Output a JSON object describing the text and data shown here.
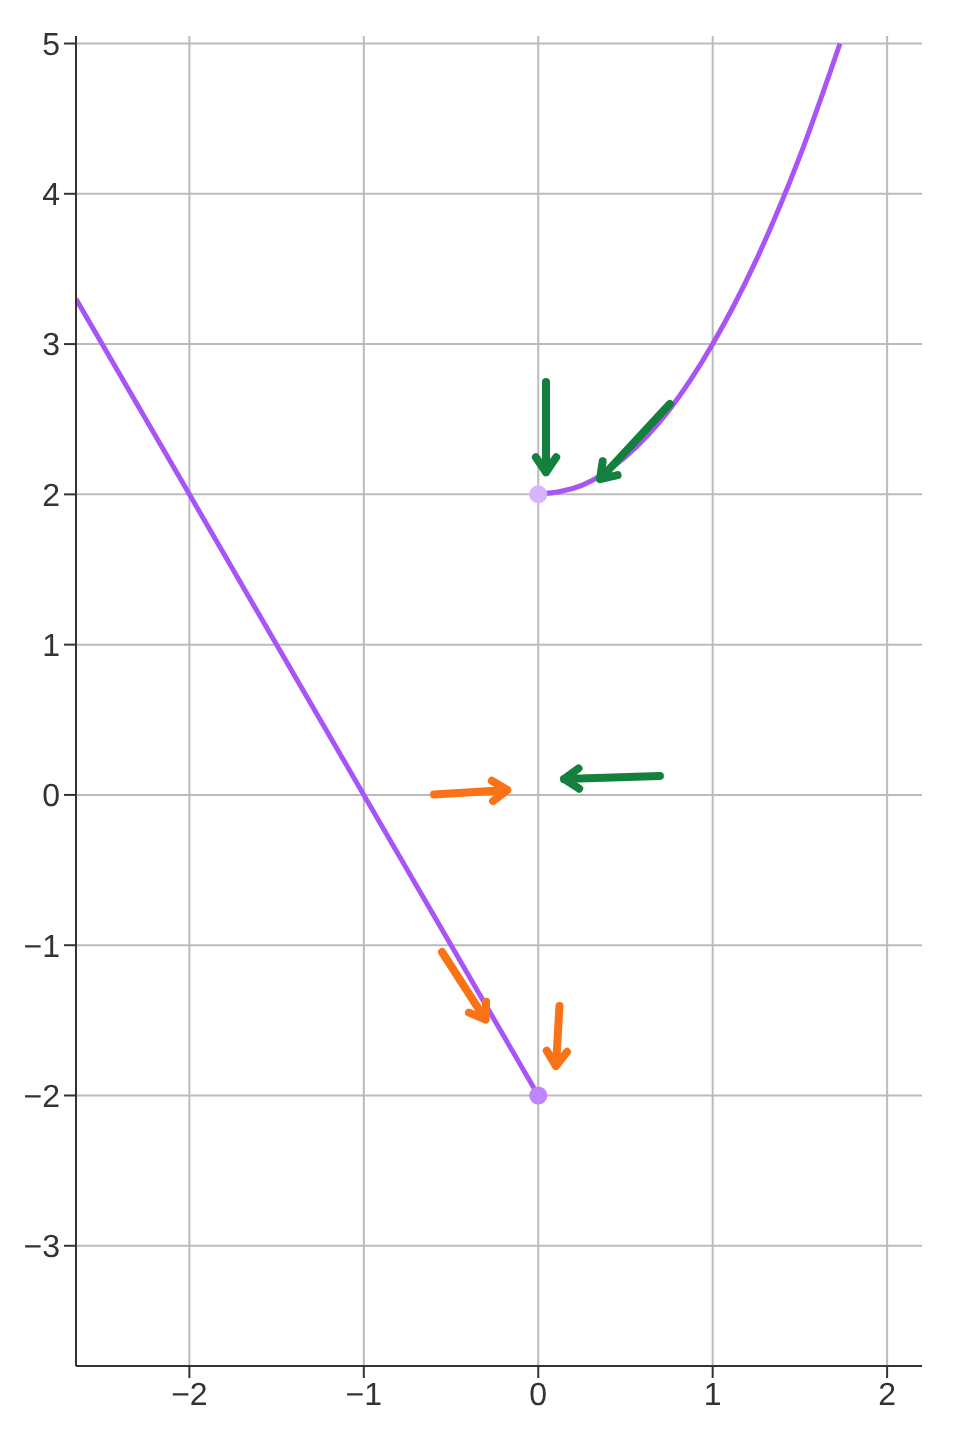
{
  "chart_data": {
    "type": "line",
    "xlim": [
      -2.65,
      2.2
    ],
    "ylim": [
      -3.8,
      5.05
    ],
    "xticks": [
      -2,
      -1,
      0,
      1,
      2
    ],
    "yticks": [
      -3,
      -2,
      -1,
      0,
      1,
      2,
      3,
      4,
      5
    ],
    "grid": true,
    "marker": "none",
    "line_style": "solid",
    "series": [
      {
        "color": "#a855f7",
        "x": [
          -2.65,
          -2,
          -1,
          0
        ],
        "values": [
          3.3,
          2,
          0,
          -2
        ]
      },
      {
        "color": "#a855f7",
        "x": [
          0,
          0.25,
          0.5,
          0.75,
          1,
          1.25,
          1.5,
          1.73
        ],
        "values": [
          2,
          2.06,
          2.25,
          2.56,
          3,
          3.56,
          4.25,
          5
        ]
      },
      {
        "type": "scatter",
        "color": "#d8b4fe",
        "marker": "circle",
        "x": [
          0
        ],
        "values": [
          2
        ]
      },
      {
        "type": "scatter",
        "color": "#c084fc",
        "marker": "circle",
        "x": [
          0
        ],
        "values": [
          -2
        ]
      }
    ]
  }
}
